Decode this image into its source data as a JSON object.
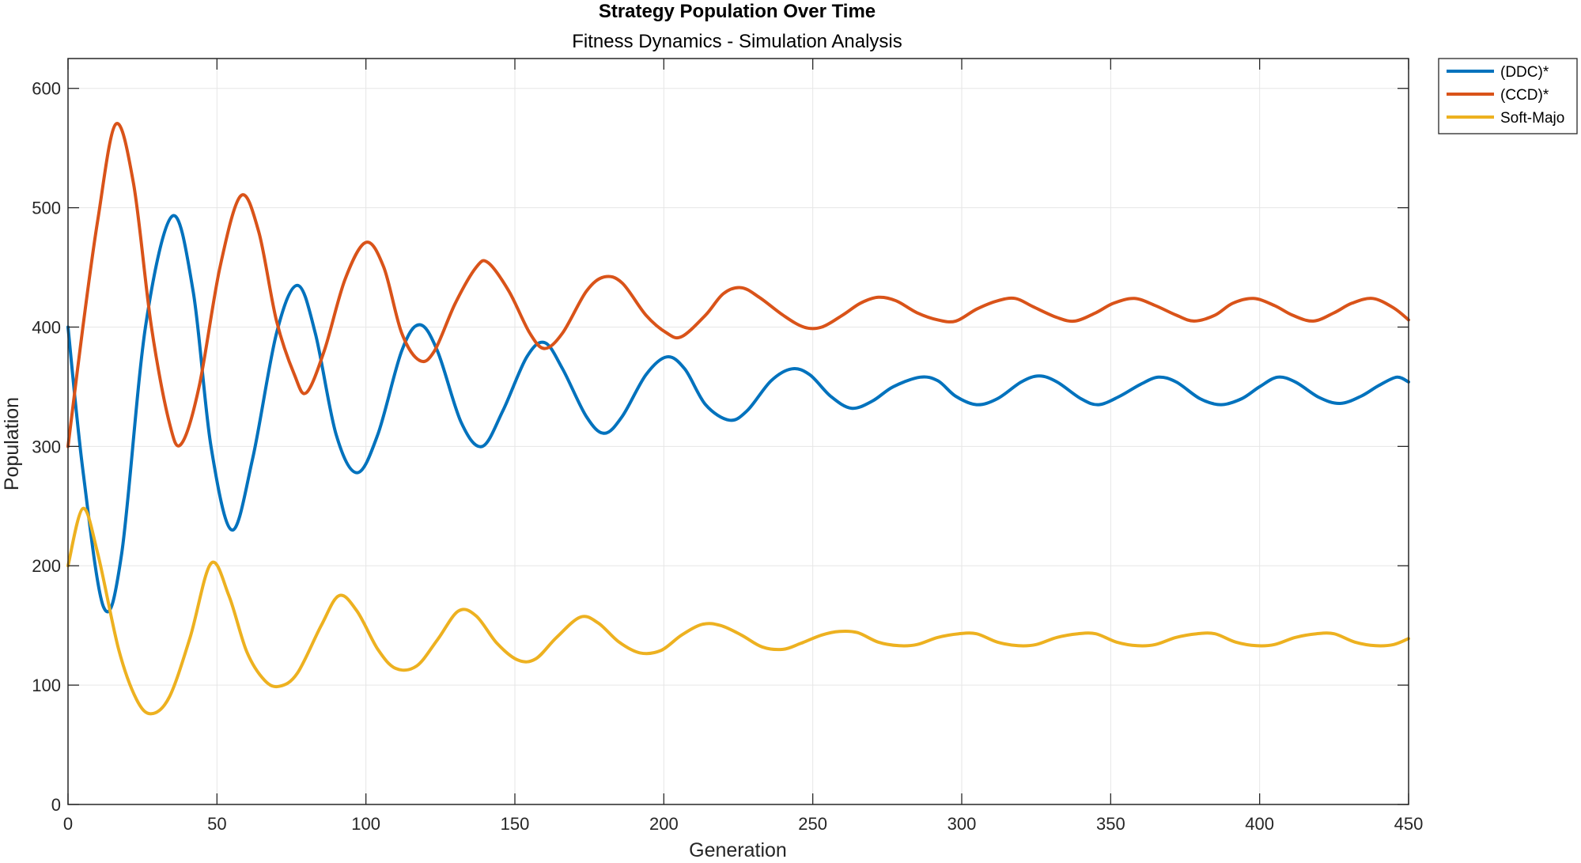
{
  "chart_data": {
    "type": "line",
    "title": "Strategy Population Over Time",
    "subtitle": "Fitness Dynamics - Simulation Analysis",
    "xlabel": "Generation",
    "ylabel": "Population",
    "xlim": [
      0,
      450
    ],
    "ylim": [
      0,
      625
    ],
    "xticks": [
      0,
      50,
      100,
      150,
      200,
      250,
      300,
      350,
      400,
      450
    ],
    "yticks": [
      0,
      100,
      200,
      300,
      400,
      500,
      600
    ],
    "grid": true,
    "legend_position": "outside-top-right",
    "series": [
      {
        "name": "(DDC)*",
        "color": "#0072BD",
        "points": [
          [
            0,
            400
          ],
          [
            5,
            280
          ],
          [
            12,
            165
          ],
          [
            18,
            210
          ],
          [
            26,
            400
          ],
          [
            35,
            493
          ],
          [
            42,
            430
          ],
          [
            48,
            300
          ],
          [
            55,
            230
          ],
          [
            62,
            290
          ],
          [
            70,
            395
          ],
          [
            77,
            435
          ],
          [
            83,
            395
          ],
          [
            90,
            310
          ],
          [
            97,
            278
          ],
          [
            104,
            310
          ],
          [
            112,
            380
          ],
          [
            118,
            402
          ],
          [
            124,
            380
          ],
          [
            132,
            320
          ],
          [
            139,
            300
          ],
          [
            146,
            330
          ],
          [
            154,
            375
          ],
          [
            160,
            387
          ],
          [
            166,
            365
          ],
          [
            174,
            325
          ],
          [
            180,
            311
          ],
          [
            186,
            325
          ],
          [
            194,
            360
          ],
          [
            201,
            375
          ],
          [
            207,
            365
          ],
          [
            214,
            335
          ],
          [
            222,
            322
          ],
          [
            228,
            330
          ],
          [
            236,
            355
          ],
          [
            243,
            365
          ],
          [
            249,
            360
          ],
          [
            256,
            342
          ],
          [
            263,
            332
          ],
          [
            270,
            338
          ],
          [
            277,
            350
          ],
          [
            286,
            358
          ],
          [
            292,
            355
          ],
          [
            298,
            342
          ],
          [
            305,
            335
          ],
          [
            312,
            340
          ],
          [
            320,
            354
          ],
          [
            326,
            359
          ],
          [
            332,
            354
          ],
          [
            340,
            340
          ],
          [
            346,
            335
          ],
          [
            353,
            342
          ],
          [
            360,
            352
          ],
          [
            366,
            358
          ],
          [
            372,
            354
          ],
          [
            380,
            340
          ],
          [
            387,
            335
          ],
          [
            394,
            340
          ],
          [
            400,
            350
          ],
          [
            406,
            358
          ],
          [
            412,
            354
          ],
          [
            420,
            341
          ],
          [
            427,
            336
          ],
          [
            434,
            342
          ],
          [
            440,
            351
          ],
          [
            446,
            358
          ],
          [
            450,
            354
          ]
        ]
      },
      {
        "name": "(CCD)*",
        "color": "#D95319",
        "points": [
          [
            0,
            300
          ],
          [
            5,
            400
          ],
          [
            10,
            490
          ],
          [
            16,
            570
          ],
          [
            22,
            520
          ],
          [
            28,
            400
          ],
          [
            34,
            320
          ],
          [
            38,
            302
          ],
          [
            44,
            350
          ],
          [
            51,
            450
          ],
          [
            58,
            510
          ],
          [
            64,
            480
          ],
          [
            70,
            405
          ],
          [
            76,
            360
          ],
          [
            80,
            345
          ],
          [
            86,
            380
          ],
          [
            93,
            440
          ],
          [
            100,
            471
          ],
          [
            106,
            450
          ],
          [
            112,
            395
          ],
          [
            118,
            372
          ],
          [
            123,
            380
          ],
          [
            130,
            420
          ],
          [
            137,
            450
          ],
          [
            141,
            454
          ],
          [
            148,
            430
          ],
          [
            155,
            395
          ],
          [
            160,
            382
          ],
          [
            166,
            395
          ],
          [
            174,
            430
          ],
          [
            180,
            442
          ],
          [
            186,
            437
          ],
          [
            194,
            410
          ],
          [
            201,
            395
          ],
          [
            206,
            392
          ],
          [
            214,
            410
          ],
          [
            220,
            428
          ],
          [
            226,
            433
          ],
          [
            232,
            425
          ],
          [
            240,
            410
          ],
          [
            247,
            400
          ],
          [
            253,
            400
          ],
          [
            260,
            410
          ],
          [
            266,
            420
          ],
          [
            272,
            425
          ],
          [
            278,
            422
          ],
          [
            285,
            412
          ],
          [
            292,
            406
          ],
          [
            298,
            405
          ],
          [
            305,
            415
          ],
          [
            312,
            422
          ],
          [
            318,
            424
          ],
          [
            324,
            417
          ],
          [
            332,
            408
          ],
          [
            338,
            405
          ],
          [
            345,
            412
          ],
          [
            351,
            420
          ],
          [
            358,
            424
          ],
          [
            365,
            418
          ],
          [
            372,
            410
          ],
          [
            378,
            405
          ],
          [
            385,
            410
          ],
          [
            391,
            420
          ],
          [
            398,
            424
          ],
          [
            405,
            418
          ],
          [
            411,
            410
          ],
          [
            418,
            405
          ],
          [
            425,
            412
          ],
          [
            431,
            420
          ],
          [
            438,
            424
          ],
          [
            445,
            416
          ],
          [
            450,
            406
          ]
        ]
      },
      {
        "name": "Soft-Majo",
        "color": "#EDB120",
        "points": [
          [
            0,
            200
          ],
          [
            5,
            248
          ],
          [
            10,
            210
          ],
          [
            17,
            130
          ],
          [
            23,
            88
          ],
          [
            28,
            76
          ],
          [
            34,
            90
          ],
          [
            41,
            140
          ],
          [
            48,
            202
          ],
          [
            54,
            175
          ],
          [
            60,
            128
          ],
          [
            66,
            104
          ],
          [
            71,
            99
          ],
          [
            77,
            110
          ],
          [
            85,
            150
          ],
          [
            91,
            175
          ],
          [
            97,
            162
          ],
          [
            104,
            130
          ],
          [
            110,
            114
          ],
          [
            117,
            116
          ],
          [
            124,
            138
          ],
          [
            131,
            162
          ],
          [
            137,
            158
          ],
          [
            144,
            135
          ],
          [
            151,
            121
          ],
          [
            157,
            122
          ],
          [
            164,
            140
          ],
          [
            172,
            157
          ],
          [
            178,
            152
          ],
          [
            185,
            136
          ],
          [
            192,
            127
          ],
          [
            199,
            129
          ],
          [
            206,
            142
          ],
          [
            213,
            151
          ],
          [
            219,
            150
          ],
          [
            226,
            142
          ],
          [
            233,
            132
          ],
          [
            240,
            130
          ],
          [
            246,
            135
          ],
          [
            253,
            142
          ],
          [
            259,
            145
          ],
          [
            265,
            144
          ],
          [
            272,
            136
          ],
          [
            279,
            133
          ],
          [
            285,
            134
          ],
          [
            292,
            140
          ],
          [
            299,
            143
          ],
          [
            305,
            143
          ],
          [
            312,
            136
          ],
          [
            319,
            133
          ],
          [
            325,
            134
          ],
          [
            332,
            140
          ],
          [
            339,
            143
          ],
          [
            345,
            143
          ],
          [
            352,
            136
          ],
          [
            359,
            133
          ],
          [
            365,
            134
          ],
          [
            372,
            140
          ],
          [
            379,
            143
          ],
          [
            385,
            143
          ],
          [
            392,
            136
          ],
          [
            399,
            133
          ],
          [
            405,
            134
          ],
          [
            412,
            140
          ],
          [
            419,
            143
          ],
          [
            425,
            143
          ],
          [
            432,
            136
          ],
          [
            439,
            133
          ],
          [
            445,
            134
          ],
          [
            450,
            139
          ]
        ]
      }
    ]
  }
}
